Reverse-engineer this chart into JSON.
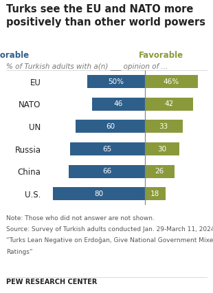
{
  "title": "Turks see the EU and NATO more\npositively than other world powers",
  "subtitle": "% of Turkish adults with a(n) ___ opinion of ...",
  "categories": [
    "EU",
    "NATO",
    "UN",
    "Russia",
    "China",
    "U.S."
  ],
  "unfavorable": [
    50,
    46,
    60,
    65,
    66,
    80
  ],
  "favorable": [
    46,
    42,
    33,
    30,
    26,
    18
  ],
  "unfavorable_label": [
    "50%",
    "46",
    "60",
    "65",
    "66",
    "80"
  ],
  "favorable_label": [
    "46%",
    "42",
    "33",
    "30",
    "26",
    "18"
  ],
  "unfavorable_color": "#2E5F8A",
  "favorable_color": "#8A9A3A",
  "legend_unfavorable_label": "Unfavorable",
  "legend_favorable_label": "Favorable",
  "note": "Note: Those who did not answer are not shown.",
  "source1": "Source: Survey of Turkish adults conducted Jan. 29-March 11, 2024.",
  "source2": "“Turks Lean Negative on Erdoğan, Give National Government Mixed",
  "source3": "Ratings”",
  "footer": "PEW RESEARCH CENTER",
  "bar_height": 0.58,
  "title_fontsize": 10.5,
  "subtitle_fontsize": 7.5,
  "label_fontsize": 7.5,
  "cat_label_fontsize": 8.5,
  "note_fontsize": 6.5,
  "footer_fontsize": 7,
  "legend_fontsize": 8.5,
  "background_color": "#ffffff",
  "text_color": "#222222",
  "note_color": "#555555",
  "source_color": "#555555",
  "divider_color": "#888888",
  "subtitle_color": "#777777"
}
